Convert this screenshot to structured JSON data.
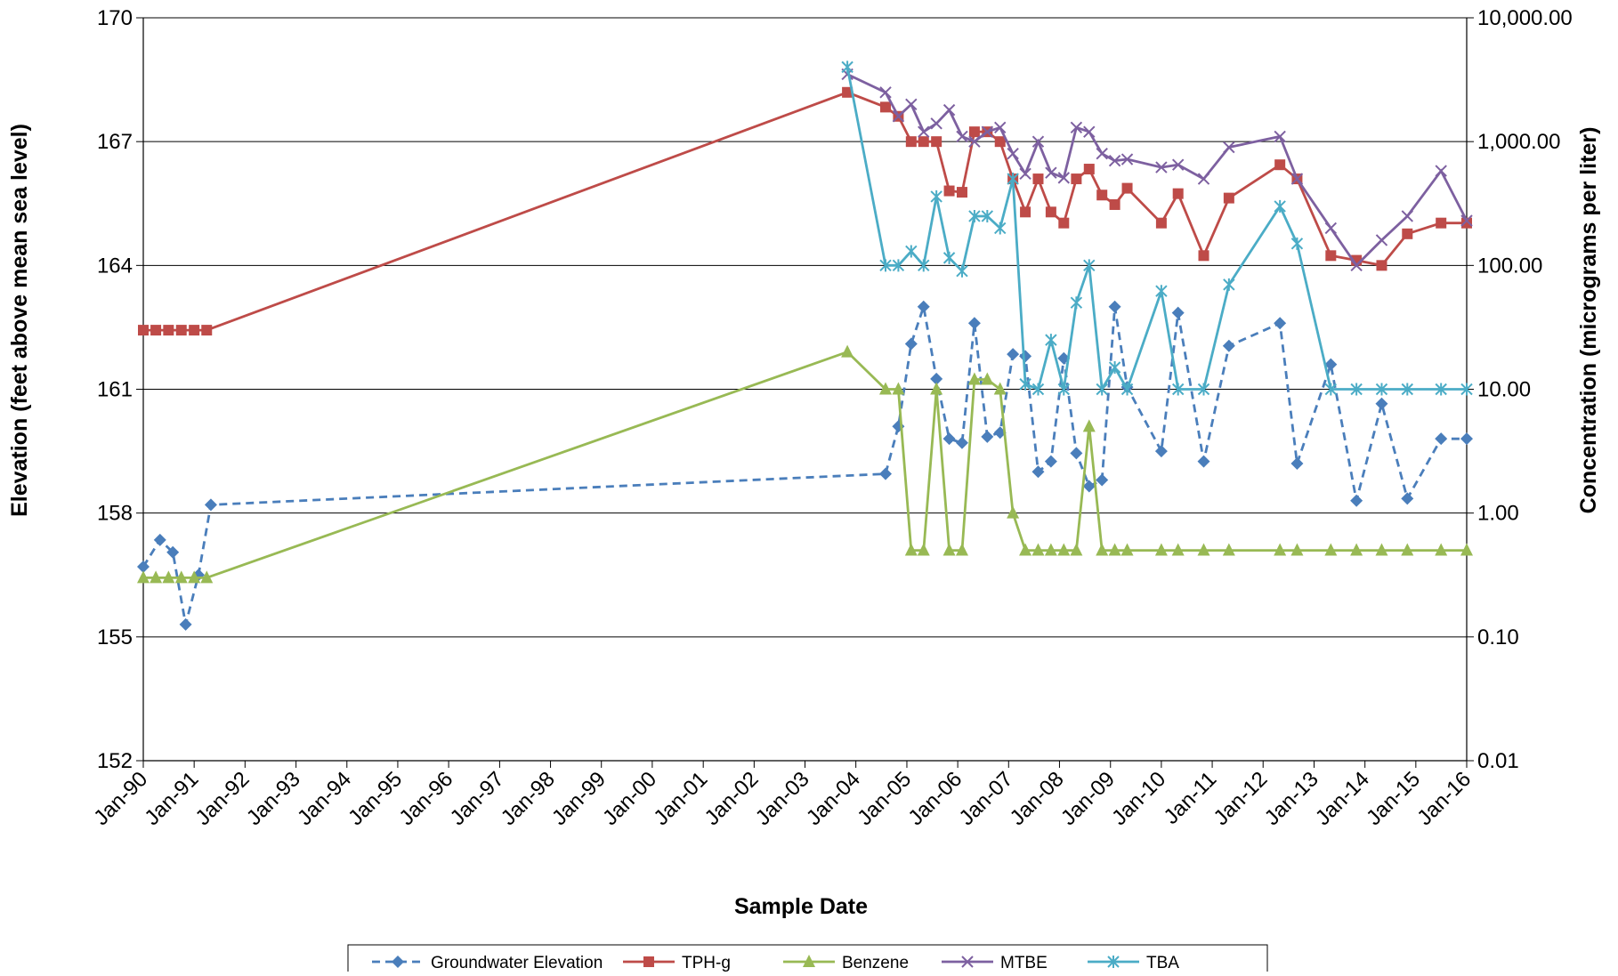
{
  "chart_data": {
    "type": "line",
    "xlabel": "Sample Date",
    "ylabel_left": "Elevation (feet above mean sea level)",
    "ylabel_right": "Concentration (micrograms per liter)",
    "x_range": [
      "1990-01-01",
      "2016-01-01"
    ],
    "x_ticks": [
      "Jan-90",
      "Jan-91",
      "Jan-92",
      "Jan-93",
      "Jan-94",
      "Jan-95",
      "Jan-96",
      "Jan-97",
      "Jan-98",
      "Jan-99",
      "Jan-00",
      "Jan-01",
      "Jan-02",
      "Jan-03",
      "Jan-04",
      "Jan-05",
      "Jan-06",
      "Jan-07",
      "Jan-08",
      "Jan-09",
      "Jan-10",
      "Jan-11",
      "Jan-12",
      "Jan-13",
      "Jan-14",
      "Jan-15",
      "Jan-16"
    ],
    "y_left": {
      "min": 152,
      "max": 170,
      "ticks": [
        "152",
        "155",
        "158",
        "161",
        "164",
        "167",
        "170"
      ]
    },
    "y_right": {
      "scale": "log",
      "min": 0.01,
      "max": 10000,
      "ticks": [
        "0.01",
        "0.10",
        "1.00",
        "10.00",
        "100.00",
        "1,000.00",
        "10,000.00"
      ]
    },
    "grid": "horizontal",
    "legend_position": "bottom",
    "series": [
      {
        "name": "Groundwater Elevation",
        "axis": "left",
        "color": "#4a7ebb",
        "line": "dashed",
        "marker": "diamond",
        "points": [
          [
            "1990-01-01",
            156.7
          ],
          [
            "1990-05-01",
            157.35
          ],
          [
            "1990-08-01",
            157.05
          ],
          [
            "1990-11-01",
            155.3
          ],
          [
            "1991-02-01",
            156.5
          ],
          [
            "1991-05-01",
            158.2
          ],
          [
            "2004-08-01",
            158.95
          ],
          [
            "2004-11-01",
            160.1
          ],
          [
            "2005-02-01",
            162.1
          ],
          [
            "2005-05-01",
            163.0
          ],
          [
            "2005-08-01",
            161.25
          ],
          [
            "2005-11-01",
            159.8
          ],
          [
            "2006-02-01",
            159.7
          ],
          [
            "2006-05-01",
            162.6
          ],
          [
            "2006-08-01",
            159.85
          ],
          [
            "2006-11-01",
            159.95
          ],
          [
            "2007-02-01",
            161.85
          ],
          [
            "2007-05-01",
            161.8
          ],
          [
            "2007-08-01",
            159.0
          ],
          [
            "2007-11-01",
            159.25
          ],
          [
            "2008-02-01",
            161.75
          ],
          [
            "2008-05-01",
            159.45
          ],
          [
            "2008-08-01",
            158.65
          ],
          [
            "2008-11-01",
            158.8
          ],
          [
            "2009-02-01",
            163.0
          ],
          [
            "2009-05-01",
            161.05
          ],
          [
            "2010-01-01",
            159.5
          ],
          [
            "2010-05-01",
            162.85
          ],
          [
            "2010-11-01",
            159.25
          ],
          [
            "2011-05-01",
            162.05
          ],
          [
            "2012-05-01",
            162.6
          ],
          [
            "2012-09-01",
            159.2
          ],
          [
            "2013-05-01",
            161.6
          ],
          [
            "2013-11-01",
            158.3
          ],
          [
            "2014-05-01",
            160.65
          ],
          [
            "2014-11-01",
            158.35
          ],
          [
            "2015-07-01",
            159.8
          ],
          [
            "2016-01-01",
            159.8
          ]
        ]
      },
      {
        "name": "TPH-g",
        "axis": "right",
        "color": "#be4b48",
        "line": "solid",
        "marker": "square",
        "points": [
          [
            "1990-01-01",
            30
          ],
          [
            "1990-04-01",
            30
          ],
          [
            "1990-07-01",
            30
          ],
          [
            "1990-10-01",
            30
          ],
          [
            "1991-01-01",
            30
          ],
          [
            "1991-04-01",
            30
          ],
          [
            "2003-11-01",
            2500
          ],
          [
            "2004-08-01",
            1900
          ],
          [
            "2004-11-01",
            1600
          ],
          [
            "2005-02-01",
            1000
          ],
          [
            "2005-05-01",
            1000
          ],
          [
            "2005-08-01",
            1000
          ],
          [
            "2005-11-01",
            400
          ],
          [
            "2006-02-01",
            390
          ],
          [
            "2006-05-01",
            1200
          ],
          [
            "2006-08-01",
            1200
          ],
          [
            "2006-11-01",
            1000
          ],
          [
            "2007-02-01",
            500
          ],
          [
            "2007-05-01",
            270
          ],
          [
            "2007-08-01",
            500
          ],
          [
            "2007-11-01",
            270
          ],
          [
            "2008-02-01",
            220
          ],
          [
            "2008-05-01",
            500
          ],
          [
            "2008-08-01",
            600
          ],
          [
            "2008-11-01",
            370
          ],
          [
            "2009-02-01",
            310
          ],
          [
            "2009-05-01",
            420
          ],
          [
            "2010-01-01",
            220
          ],
          [
            "2010-05-01",
            380
          ],
          [
            "2010-11-01",
            120
          ],
          [
            "2011-05-01",
            350
          ],
          [
            "2012-05-01",
            650
          ],
          [
            "2012-09-01",
            500
          ],
          [
            "2013-05-01",
            120
          ],
          [
            "2013-11-01",
            110
          ],
          [
            "2014-05-01",
            100
          ],
          [
            "2014-11-01",
            180
          ],
          [
            "2015-07-01",
            220
          ],
          [
            "2016-01-01",
            220
          ]
        ]
      },
      {
        "name": "Benzene",
        "axis": "right",
        "color": "#98b954",
        "line": "solid",
        "marker": "triangle",
        "points": [
          [
            "1990-01-01",
            0.3
          ],
          [
            "1990-04-01",
            0.3
          ],
          [
            "1990-07-01",
            0.3
          ],
          [
            "1990-10-01",
            0.3
          ],
          [
            "1991-01-01",
            0.3
          ],
          [
            "1991-04-01",
            0.3
          ],
          [
            "2003-11-01",
            20
          ],
          [
            "2004-08-01",
            10
          ],
          [
            "2004-11-01",
            10
          ],
          [
            "2005-02-01",
            0.5
          ],
          [
            "2005-05-01",
            0.5
          ],
          [
            "2005-08-01",
            10
          ],
          [
            "2005-11-01",
            0.5
          ],
          [
            "2006-02-01",
            0.5
          ],
          [
            "2006-05-01",
            12
          ],
          [
            "2006-08-01",
            12
          ],
          [
            "2006-11-01",
            10
          ],
          [
            "2007-02-01",
            1.0
          ],
          [
            "2007-05-01",
            0.5
          ],
          [
            "2007-08-01",
            0.5
          ],
          [
            "2007-11-01",
            0.5
          ],
          [
            "2008-02-01",
            0.5
          ],
          [
            "2008-05-01",
            0.5
          ],
          [
            "2008-08-01",
            5
          ],
          [
            "2008-11-01",
            0.5
          ],
          [
            "2009-02-01",
            0.5
          ],
          [
            "2009-05-01",
            0.5
          ],
          [
            "2010-01-01",
            0.5
          ],
          [
            "2010-05-01",
            0.5
          ],
          [
            "2010-11-01",
            0.5
          ],
          [
            "2011-05-01",
            0.5
          ],
          [
            "2012-05-01",
            0.5
          ],
          [
            "2012-09-01",
            0.5
          ],
          [
            "2013-05-01",
            0.5
          ],
          [
            "2013-11-01",
            0.5
          ],
          [
            "2014-05-01",
            0.5
          ],
          [
            "2014-11-01",
            0.5
          ],
          [
            "2015-07-01",
            0.5
          ],
          [
            "2016-01-01",
            0.5
          ]
        ]
      },
      {
        "name": "MTBE",
        "axis": "right",
        "color": "#7d60a0",
        "line": "solid",
        "marker": "x",
        "points": [
          [
            "2003-11-01",
            3500
          ],
          [
            "2004-08-01",
            2500
          ],
          [
            "2004-11-01",
            1600
          ],
          [
            "2005-02-01",
            2000
          ],
          [
            "2005-05-01",
            1200
          ],
          [
            "2005-08-01",
            1400
          ],
          [
            "2005-11-01",
            1800
          ],
          [
            "2006-02-01",
            1100
          ],
          [
            "2006-05-01",
            1000
          ],
          [
            "2006-08-01",
            1200
          ],
          [
            "2006-11-01",
            1300
          ],
          [
            "2007-02-01",
            800
          ],
          [
            "2007-05-01",
            550
          ],
          [
            "2007-08-01",
            1000
          ],
          [
            "2007-11-01",
            560
          ],
          [
            "2008-02-01",
            510
          ],
          [
            "2008-05-01",
            1300
          ],
          [
            "2008-08-01",
            1200
          ],
          [
            "2008-11-01",
            800
          ],
          [
            "2009-02-01",
            700
          ],
          [
            "2009-05-01",
            720
          ],
          [
            "2010-01-01",
            620
          ],
          [
            "2010-05-01",
            650
          ],
          [
            "2010-11-01",
            500
          ],
          [
            "2011-05-01",
            900
          ],
          [
            "2012-05-01",
            1100
          ],
          [
            "2012-09-01",
            500
          ],
          [
            "2013-05-01",
            200
          ],
          [
            "2013-11-01",
            100
          ],
          [
            "2014-05-01",
            160
          ],
          [
            "2014-11-01",
            250
          ],
          [
            "2015-07-01",
            580
          ],
          [
            "2016-01-01",
            230
          ]
        ]
      },
      {
        "name": "TBA",
        "axis": "right",
        "color": "#4bacc6",
        "line": "solid",
        "marker": "asterisk",
        "points": [
          [
            "2003-11-01",
            4000
          ],
          [
            "2004-08-01",
            100
          ],
          [
            "2004-11-01",
            100
          ],
          [
            "2005-02-01",
            130
          ],
          [
            "2005-05-01",
            100
          ],
          [
            "2005-08-01",
            360
          ],
          [
            "2005-11-01",
            115
          ],
          [
            "2006-02-01",
            90
          ],
          [
            "2006-05-01",
            250
          ],
          [
            "2006-08-01",
            250
          ],
          [
            "2006-11-01",
            200
          ],
          [
            "2007-02-01",
            500
          ],
          [
            "2007-05-01",
            11
          ],
          [
            "2007-08-01",
            10
          ],
          [
            "2007-11-01",
            25
          ],
          [
            "2008-02-01",
            10
          ],
          [
            "2008-05-01",
            50
          ],
          [
            "2008-08-01",
            100
          ],
          [
            "2008-11-01",
            10
          ],
          [
            "2009-02-01",
            15
          ],
          [
            "2009-05-01",
            10
          ],
          [
            "2010-01-01",
            62
          ],
          [
            "2010-05-01",
            10
          ],
          [
            "2010-11-01",
            10
          ],
          [
            "2011-05-01",
            70
          ],
          [
            "2012-05-01",
            300
          ],
          [
            "2012-09-01",
            150
          ],
          [
            "2013-05-01",
            10
          ],
          [
            "2013-11-01",
            10
          ],
          [
            "2014-05-01",
            10
          ],
          [
            "2014-11-01",
            10
          ],
          [
            "2015-07-01",
            10
          ],
          [
            "2016-01-01",
            10
          ]
        ]
      }
    ]
  }
}
